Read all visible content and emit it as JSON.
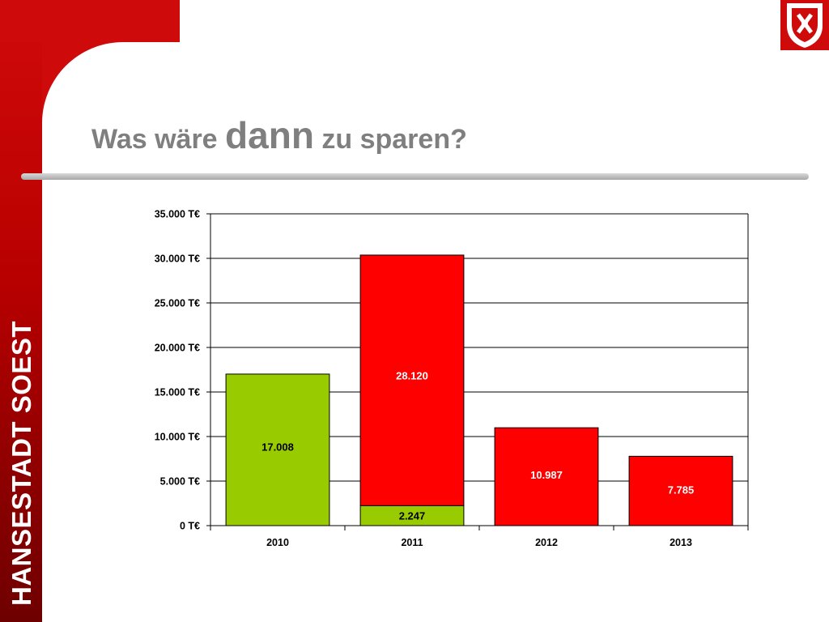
{
  "slide": {
    "title_part1": "Was wäre ",
    "title_emphasis": "dann",
    "title_part2": " zu sparen?",
    "sidebar_text": "HANSESTADT SOEST"
  },
  "colors": {
    "brand_red": "#cf0a0a",
    "bar_green": "#99cc00",
    "bar_red": "#ff0000",
    "title_gray": "#7f7f7f"
  },
  "chart_data": {
    "type": "bar",
    "stacked": true,
    "categories": [
      "2010",
      "2011",
      "2012",
      "2013"
    ],
    "series": [
      {
        "color": "#99cc00",
        "values": [
          17008,
          2247,
          0,
          0
        ],
        "labels": [
          "17.008",
          "2.247",
          "",
          ""
        ]
      },
      {
        "color": "#ff0000",
        "values": [
          0,
          28120,
          10987,
          7785
        ],
        "labels": [
          "",
          "28.120",
          "10.987",
          "7.785"
        ]
      }
    ],
    "ylim": [
      0,
      35000
    ],
    "y_ticks": [
      0,
      5000,
      10000,
      15000,
      20000,
      25000,
      30000,
      35000
    ],
    "y_tick_labels": [
      "0 T€",
      "5.000 T€",
      "10.000 T€",
      "15.000 T€",
      "20.000 T€",
      "25.000 T€",
      "30.000 T€",
      "35.000 T€"
    ],
    "grid": true,
    "legend": "none"
  }
}
